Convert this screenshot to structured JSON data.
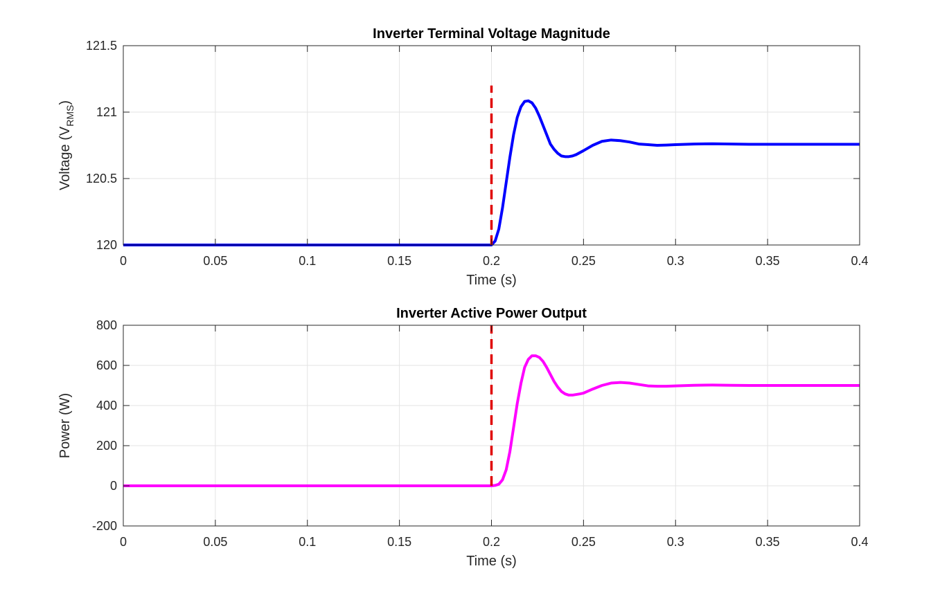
{
  "chart_data": [
    {
      "type": "line",
      "title": "Inverter Terminal Voltage Magnitude",
      "xlabel": "Time (s)",
      "ylabel_main": "Voltage (V",
      "ylabel_sub": "RMS",
      "ylabel_close": ")",
      "xlim": [
        0,
        0.4
      ],
      "ylim": [
        120,
        121.5
      ],
      "xticks": [
        0,
        0.05,
        0.1,
        0.15,
        0.2,
        0.25,
        0.3,
        0.35,
        0.4
      ],
      "xtick_labels": [
        "0",
        "0.05",
        "0.1",
        "0.15",
        "0.2",
        "0.25",
        "0.3",
        "0.35",
        "0.4"
      ],
      "yticks": [
        120,
        120.5,
        121,
        121.5
      ],
      "ytick_labels": [
        "120",
        "120.5",
        "121",
        "121.5"
      ],
      "grid": true,
      "series": [
        {
          "color": "#0000ff",
          "x": [
            0,
            0.1,
            0.2,
            0.202,
            0.204,
            0.206,
            0.208,
            0.21,
            0.212,
            0.214,
            0.216,
            0.218,
            0.22,
            0.222,
            0.224,
            0.226,
            0.228,
            0.23,
            0.232,
            0.234,
            0.236,
            0.238,
            0.24,
            0.242,
            0.244,
            0.246,
            0.248,
            0.25,
            0.255,
            0.26,
            0.265,
            0.27,
            0.275,
            0.28,
            0.285,
            0.29,
            0.295,
            0.3,
            0.31,
            0.32,
            0.33,
            0.34,
            0.35,
            0.36,
            0.38,
            0.4
          ],
          "y": [
            120,
            120,
            120,
            120.03,
            120.12,
            120.28,
            120.47,
            120.66,
            120.83,
            120.96,
            121.04,
            121.08,
            121.085,
            121.07,
            121.03,
            120.97,
            120.9,
            120.83,
            120.76,
            120.72,
            120.69,
            120.67,
            120.665,
            120.665,
            120.67,
            120.68,
            120.695,
            120.71,
            120.75,
            120.78,
            120.79,
            120.785,
            120.775,
            120.76,
            120.755,
            120.75,
            120.752,
            120.755,
            120.76,
            120.762,
            120.76,
            120.758,
            120.758,
            120.758,
            120.758,
            120.758
          ]
        },
        {
          "color": "#e00000",
          "dashed": true,
          "x": [
            0.2,
            0.2
          ],
          "y": [
            120,
            121.2
          ]
        }
      ]
    },
    {
      "type": "line",
      "title": "Inverter Active Power Output",
      "xlabel": "Time (s)",
      "ylabel_main": "Power (W)",
      "ylabel_sub": "",
      "ylabel_close": "",
      "xlim": [
        0,
        0.4
      ],
      "ylim": [
        -200,
        800
      ],
      "xticks": [
        0,
        0.05,
        0.1,
        0.15,
        0.2,
        0.25,
        0.3,
        0.35,
        0.4
      ],
      "xtick_labels": [
        "0",
        "0.05",
        "0.1",
        "0.15",
        "0.2",
        "0.25",
        "0.3",
        "0.35",
        "0.4"
      ],
      "yticks": [
        -200,
        0,
        200,
        400,
        600,
        800
      ],
      "ytick_labels": [
        "-200",
        "0",
        "200",
        "400",
        "600",
        "800"
      ],
      "grid": true,
      "series": [
        {
          "color": "#ff00ff",
          "x": [
            0,
            0.1,
            0.2,
            0.202,
            0.204,
            0.206,
            0.208,
            0.21,
            0.212,
            0.214,
            0.216,
            0.218,
            0.22,
            0.222,
            0.224,
            0.226,
            0.228,
            0.23,
            0.232,
            0.234,
            0.236,
            0.238,
            0.24,
            0.242,
            0.244,
            0.246,
            0.248,
            0.25,
            0.252,
            0.255,
            0.26,
            0.265,
            0.27,
            0.275,
            0.28,
            0.285,
            0.29,
            0.295,
            0.3,
            0.31,
            0.32,
            0.33,
            0.34,
            0.35,
            0.36,
            0.38,
            0.4
          ],
          "y": [
            0,
            0,
            0,
            2,
            8,
            30,
            80,
            170,
            290,
            410,
            510,
            590,
            630,
            648,
            648,
            640,
            620,
            590,
            555,
            520,
            492,
            470,
            458,
            452,
            452,
            455,
            458,
            462,
            470,
            482,
            500,
            512,
            515,
            512,
            505,
            498,
            496,
            496,
            498,
            501,
            502,
            501,
            500,
            500,
            500,
            500,
            500
          ]
        },
        {
          "color": "#e00000",
          "dashed": true,
          "x": [
            0.2,
            0.2
          ],
          "y": [
            0,
            800
          ]
        }
      ]
    }
  ]
}
